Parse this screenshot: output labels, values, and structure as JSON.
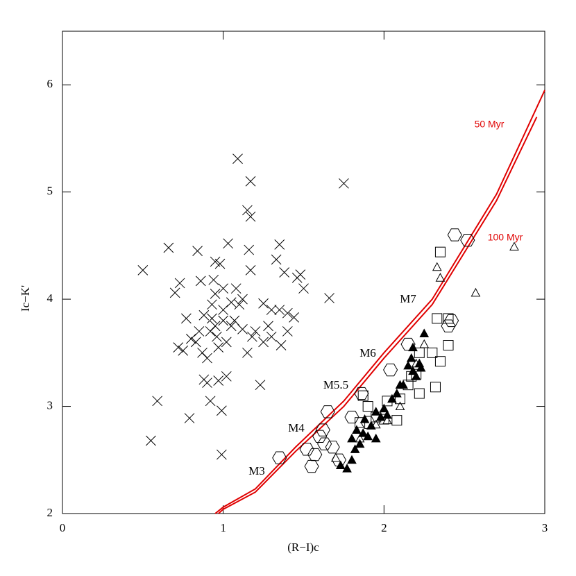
{
  "chart_data": {
    "type": "scatter",
    "xlabel": "(R−I)c",
    "ylabel": "Ic−K'",
    "xlim": [
      0,
      3
    ],
    "ylim": [
      2,
      6.5
    ],
    "xticks": [
      0,
      1,
      2,
      3
    ],
    "yticks": [
      2,
      3,
      4,
      5,
      6
    ],
    "annotations": [
      "M3",
      "M4",
      "M5.5",
      "M6",
      "M7"
    ],
    "lines": [
      {
        "name": "50 Myr",
        "color": "#e00000",
        "x": [
          0.95,
          1.0,
          1.2,
          1.45,
          1.75,
          2.0,
          2.3,
          2.7,
          3.0
        ],
        "y": [
          2.0,
          2.06,
          2.23,
          2.62,
          3.05,
          3.5,
          4.0,
          4.98,
          5.95
        ]
      },
      {
        "name": "100 Myr",
        "color": "#e00000",
        "x": [
          0.97,
          1.0,
          1.2,
          1.45,
          1.75,
          2.0,
          2.3,
          2.7,
          2.95
        ],
        "y": [
          2.0,
          2.04,
          2.2,
          2.58,
          3.0,
          3.45,
          3.95,
          4.92,
          5.7
        ]
      }
    ],
    "series": [
      {
        "marker": "cross",
        "color": "#000000",
        "x": [
          0.5,
          0.55,
          0.59,
          0.66,
          0.7,
          0.73,
          0.72,
          0.75,
          0.79,
          0.77,
          0.8,
          0.84,
          0.86,
          0.85,
          0.88,
          0.9,
          0.92,
          0.93,
          0.94,
          0.95,
          0.96,
          0.97,
          0.98,
          0.99,
          0.99,
          1.0,
          1.02,
          1.03,
          1.05,
          1.08,
          1.09,
          1.12,
          1.15,
          1.16,
          1.17,
          1.17,
          1.17,
          1.18,
          1.23,
          1.25,
          1.28,
          1.3,
          1.33,
          1.35,
          1.36,
          1.38,
          1.4,
          1.44,
          1.46,
          1.48,
          1.5,
          1.66,
          1.75,
          0.88,
          0.92,
          0.95,
          0.9,
          0.97,
          1.0,
          1.02,
          1.05,
          1.07,
          1.1,
          1.12,
          0.93,
          1.3,
          1.35,
          1.4,
          1.2,
          0.83,
          0.87,
          1.15,
          1.0,
          0.95,
          1.25
        ],
        "y": [
          4.27,
          2.68,
          3.05,
          4.48,
          4.06,
          4.15,
          3.55,
          3.52,
          2.89,
          3.82,
          3.63,
          4.45,
          4.17,
          3.7,
          3.25,
          3.22,
          3.05,
          3.82,
          4.18,
          4.35,
          3.65,
          3.24,
          4.33,
          2.96,
          2.55,
          3.8,
          3.28,
          4.52,
          3.97,
          4.1,
          5.31,
          3.72,
          4.83,
          4.46,
          5.1,
          4.77,
          4.27,
          3.65,
          3.2,
          3.96,
          3.75,
          3.65,
          4.37,
          4.51,
          3.57,
          4.25,
          3.87,
          3.83,
          4.2,
          4.23,
          4.1,
          4.01,
          5.08,
          3.85,
          3.7,
          3.75,
          3.45,
          3.55,
          3.9,
          3.6,
          3.75,
          3.8,
          3.95,
          4.0,
          3.95,
          3.9,
          3.9,
          3.7,
          3.7,
          3.6,
          3.5,
          3.5,
          4.1,
          4.05,
          3.6
        ]
      },
      {
        "marker": "hexagon",
        "color": "#000000",
        "x": [
          1.35,
          1.52,
          1.55,
          1.57,
          1.6,
          1.62,
          1.65,
          1.68,
          1.72,
          1.8,
          1.86,
          1.9,
          2.04,
          2.15,
          2.42,
          2.4,
          2.44,
          2.52,
          1.63
        ],
        "y": [
          2.52,
          2.6,
          2.44,
          2.55,
          2.72,
          2.78,
          2.95,
          2.62,
          2.5,
          2.9,
          3.12,
          2.85,
          3.34,
          3.58,
          3.8,
          3.75,
          4.6,
          4.55,
          2.65
        ]
      },
      {
        "marker": "square",
        "color": "#000000",
        "x": [
          1.85,
          1.87,
          1.9,
          1.95,
          2.0,
          2.02,
          2.08,
          2.1,
          2.15,
          2.17,
          2.2,
          2.22,
          2.22,
          2.3,
          2.32,
          2.33,
          2.35,
          2.35,
          2.4,
          2.4
        ],
        "y": [
          2.85,
          3.1,
          3.0,
          2.9,
          2.88,
          3.05,
          2.87,
          3.07,
          3.2,
          3.28,
          3.3,
          3.5,
          3.12,
          3.5,
          3.18,
          3.82,
          4.44,
          3.42,
          3.57,
          3.82
        ]
      },
      {
        "marker": "triangle",
        "color": "#000000",
        "x": [
          1.7,
          1.85,
          1.95,
          2.02,
          2.1,
          2.2,
          2.25,
          2.33,
          2.35,
          2.57,
          2.81
        ],
        "y": [
          2.52,
          2.7,
          2.83,
          2.87,
          3.0,
          3.4,
          3.58,
          4.3,
          4.2,
          4.06,
          4.49
        ]
      },
      {
        "marker": "filled-triangle",
        "color": "#000000",
        "x": [
          1.73,
          1.77,
          1.8,
          1.82,
          1.85,
          1.8,
          1.83,
          1.87,
          1.9,
          1.88,
          1.92,
          1.95,
          1.98,
          2.0,
          2.02,
          2.05,
          2.08,
          2.12,
          2.15,
          2.17,
          2.18,
          2.2,
          2.22,
          2.25,
          2.23,
          2.18,
          1.95,
          2.1
        ],
        "y": [
          2.45,
          2.42,
          2.5,
          2.6,
          2.65,
          2.7,
          2.78,
          2.75,
          2.72,
          2.88,
          2.82,
          2.95,
          2.9,
          2.98,
          2.92,
          3.07,
          3.12,
          3.2,
          3.38,
          3.45,
          3.33,
          3.28,
          3.4,
          3.68,
          3.36,
          3.55,
          2.7,
          3.2
        ]
      }
    ]
  }
}
